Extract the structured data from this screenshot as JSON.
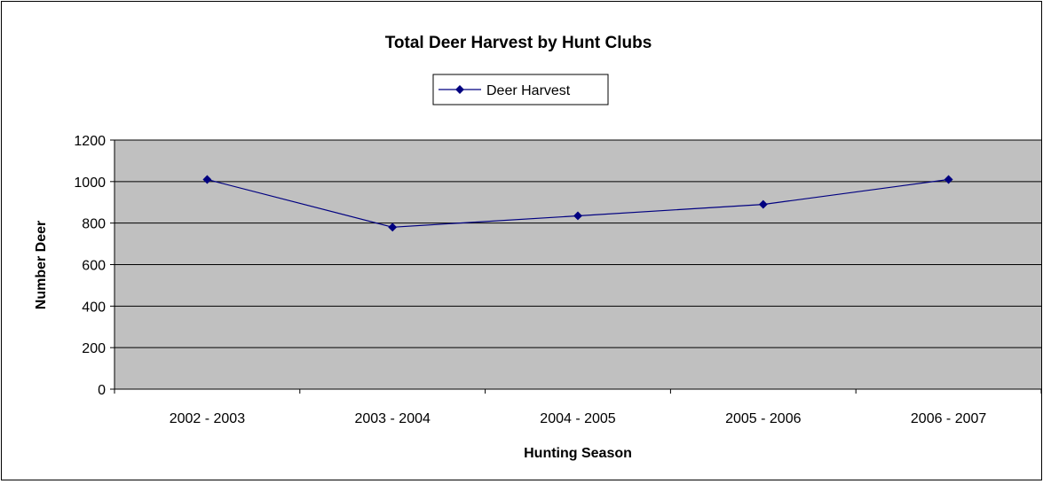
{
  "chart_data": {
    "type": "line",
    "title": "Total Deer Harvest by Hunt Clubs",
    "xlabel": "Hunting Season",
    "ylabel": "Number Deer",
    "categories": [
      "2002 - 2003",
      "2003 - 2004",
      "2004 - 2005",
      "2005 - 2006",
      "2006 - 2007"
    ],
    "series": [
      {
        "name": "Deer Harvest",
        "values": [
          1010,
          780,
          835,
          890,
          1010
        ],
        "color": "#000080"
      }
    ],
    "ylim": [
      0,
      1200
    ],
    "yticks": [
      0,
      200,
      400,
      600,
      800,
      1000,
      1200
    ],
    "grid": true,
    "plot_background": "#c0c0c0",
    "legend_position": "top-center"
  }
}
